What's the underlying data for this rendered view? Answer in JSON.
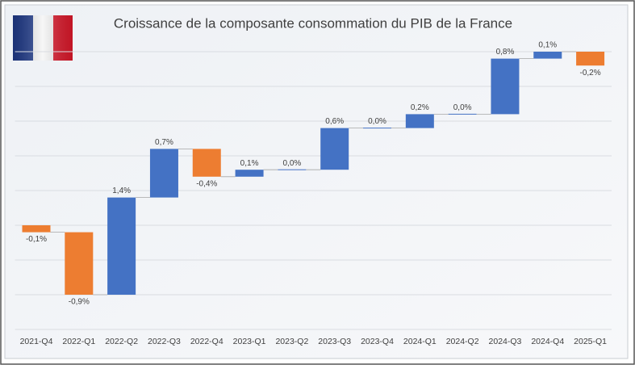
{
  "chart_data": {
    "type": "waterfall",
    "title": "Croissance de la composante consommation du PIB de la France",
    "categories": [
      "2021-Q4",
      "2022-Q1",
      "2022-Q2",
      "2022-Q3",
      "2022-Q4",
      "2023-Q1",
      "2023-Q2",
      "2023-Q3",
      "2023-Q4",
      "2024-Q1",
      "2024-Q2",
      "2024-Q3",
      "2024-Q4",
      "2025-Q1"
    ],
    "values": [
      -0.1,
      -0.9,
      1.4,
      0.7,
      -0.4,
      0.1,
      0.0,
      0.6,
      0.0,
      0.2,
      0.0,
      0.8,
      0.1,
      -0.2
    ],
    "value_labels": [
      "-0,1%",
      "-0,9%",
      "1,4%",
      "0,7%",
      "-0,4%",
      "0,1%",
      "0,0%",
      "0,6%",
      "0,0%",
      "0,2%",
      "0,0%",
      "0,8%",
      "0,1%",
      "-0,2%"
    ],
    "increase_color": "#4472c4",
    "decrease_color": "#ed7d31",
    "ylim": [
      -1.5,
      3.0
    ],
    "yticks": [
      -1.5,
      -1.0,
      -0.5,
      0,
      0.5,
      1.0,
      1.5,
      2.0,
      2.5
    ],
    "grid": true
  }
}
